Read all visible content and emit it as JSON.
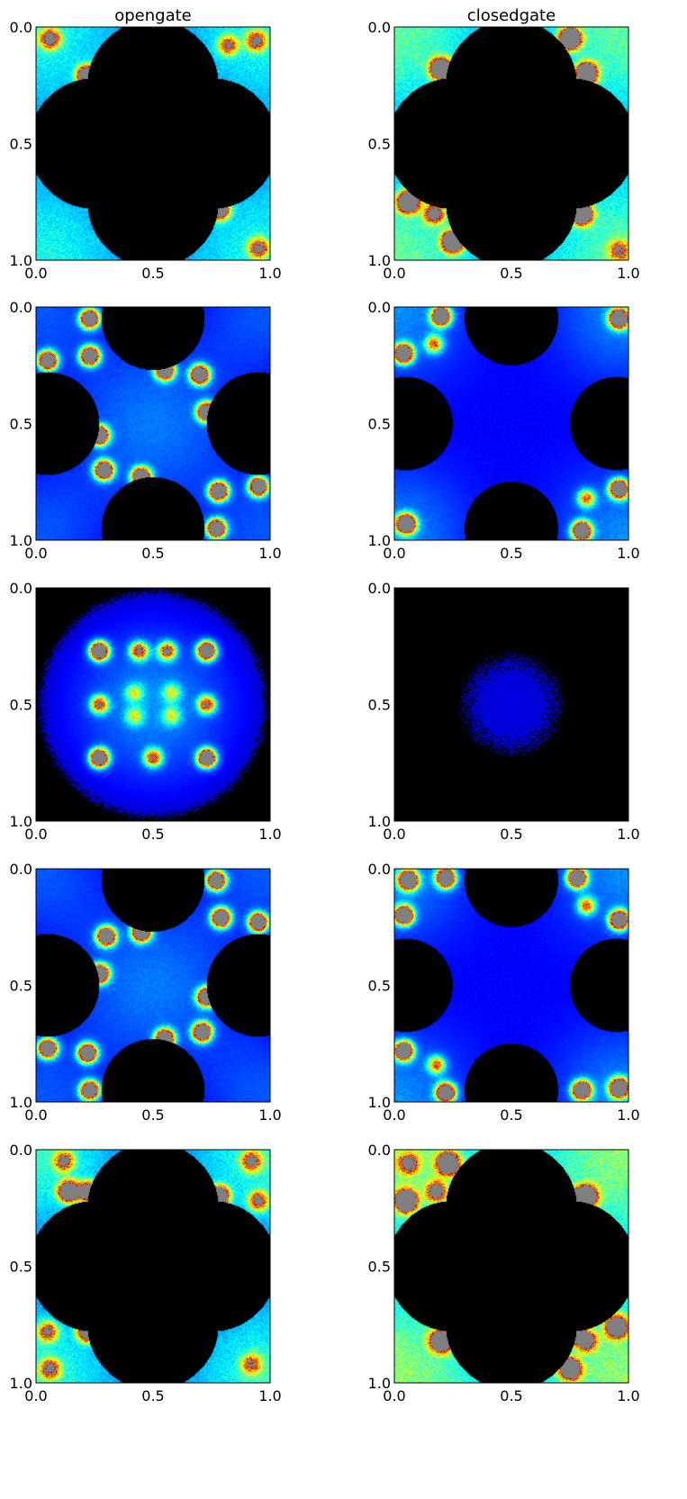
{
  "colors": {
    "background": "#000000",
    "saturated": "#808080",
    "colormap": [
      "#000080",
      "#0000ff",
      "#0080ff",
      "#00ffff",
      "#80ff80",
      "#ffff00",
      "#ff8000",
      "#ff0000",
      "#800000"
    ]
  },
  "chart_data": [
    {
      "type": "heatmap",
      "panel": "row-1-left",
      "title": "opengate",
      "xlim": [
        0.0,
        1.0
      ],
      "ylim": [
        1.0,
        0.0
      ],
      "x_ticks": [
        "0.0",
        "0.5",
        "1.0"
      ],
      "y_ticks": [
        "0.0",
        "0.5",
        "1.0"
      ],
      "symmetry": "fourfold-corners",
      "background": "#000000",
      "hotspots": [
        [
          0.06,
          0.05,
          1.2
        ],
        [
          0.22,
          0.21,
          2.2
        ],
        [
          0.94,
          0.06,
          1.0
        ],
        [
          0.82,
          0.08,
          0.9
        ],
        [
          0.78,
          0.78,
          2.2
        ],
        [
          0.95,
          0.95,
          1.0
        ],
        [
          0.2,
          0.5,
          0.6
        ],
        [
          0.5,
          0.5,
          0.3
        ]
      ],
      "blobs": [
        [
          0.0,
          0.0,
          0.35,
          0.7
        ],
        [
          1.0,
          0.0,
          0.35,
          0.7
        ],
        [
          0.0,
          1.0,
          0.35,
          0.7
        ],
        [
          1.0,
          1.0,
          0.35,
          0.7
        ]
      ],
      "voids": [
        [
          0.5,
          0.25,
          0.28
        ],
        [
          0.5,
          0.75,
          0.28
        ],
        [
          0.25,
          0.5,
          0.28
        ],
        [
          0.75,
          0.5,
          0.28
        ],
        [
          0.5,
          0.5,
          0.25
        ]
      ]
    },
    {
      "type": "heatmap",
      "panel": "row-1-right",
      "title": "closedgate",
      "xlim": [
        0.0,
        1.0
      ],
      "ylim": [
        1.0,
        0.0
      ],
      "x_ticks": [
        "0.0",
        "0.5",
        "1.0"
      ],
      "y_ticks": [
        "0.0",
        "0.5",
        "1.0"
      ],
      "symmetry": "fourfold-corners",
      "background": "#000000",
      "hotspots": [
        [
          0.2,
          0.18,
          2.5
        ],
        [
          0.75,
          0.05,
          2.5
        ],
        [
          0.82,
          0.2,
          2.5
        ],
        [
          0.06,
          0.75,
          2.5
        ],
        [
          0.25,
          0.92,
          2.5
        ],
        [
          0.8,
          0.8,
          2.5
        ],
        [
          0.17,
          0.8,
          1.3
        ],
        [
          0.96,
          0.96,
          0.8
        ]
      ],
      "blobs": [
        [
          0.0,
          0.0,
          0.35,
          0.8
        ],
        [
          1.0,
          0.0,
          0.35,
          0.8
        ],
        [
          0.0,
          1.0,
          0.35,
          0.8
        ],
        [
          1.0,
          1.0,
          0.35,
          0.8
        ]
      ],
      "voids": [
        [
          0.5,
          0.25,
          0.28
        ],
        [
          0.5,
          0.75,
          0.28
        ],
        [
          0.25,
          0.5,
          0.28
        ],
        [
          0.75,
          0.5,
          0.28
        ],
        [
          0.5,
          0.5,
          0.28
        ]
      ]
    },
    {
      "type": "heatmap",
      "panel": "row-2-left",
      "title": "",
      "xlim": [
        0.0,
        1.0
      ],
      "ylim": [
        1.0,
        0.0
      ],
      "x_ticks": [
        "0.0",
        "0.5",
        "1.0"
      ],
      "y_ticks": [
        "0.0",
        "0.5",
        "1.0"
      ],
      "symmetry": "center-network",
      "background": "#000000",
      "hotspots": [
        [
          0.23,
          0.21,
          2.2
        ],
        [
          0.05,
          0.23,
          2.2
        ],
        [
          0.55,
          0.27,
          2.2
        ],
        [
          0.7,
          0.29,
          2.2
        ],
        [
          0.73,
          0.45,
          2.2
        ],
        [
          0.27,
          0.55,
          2.2
        ],
        [
          0.29,
          0.7,
          2.2
        ],
        [
          0.45,
          0.73,
          2.2
        ],
        [
          0.78,
          0.79,
          2.2
        ],
        [
          0.95,
          0.77,
          2.2
        ],
        [
          0.77,
          0.95,
          2.2
        ],
        [
          0.23,
          0.05,
          2.2
        ]
      ],
      "blobs": [
        [
          0.5,
          0.5,
          0.28,
          0.45
        ],
        [
          0.0,
          0.0,
          0.22,
          0.35
        ],
        [
          1.0,
          1.0,
          0.22,
          0.35
        ],
        [
          0.0,
          1.0,
          0.22,
          0.35
        ],
        [
          1.0,
          0.0,
          0.22,
          0.35
        ]
      ],
      "voids": [
        [
          0.5,
          0.05,
          0.22
        ],
        [
          0.5,
          0.95,
          0.22
        ],
        [
          0.05,
          0.5,
          0.22
        ],
        [
          0.95,
          0.5,
          0.22
        ]
      ]
    },
    {
      "type": "heatmap",
      "panel": "row-2-right",
      "title": "",
      "xlim": [
        0.0,
        1.0
      ],
      "ylim": [
        1.0,
        0.0
      ],
      "x_ticks": [
        "0.0",
        "0.5",
        "1.0"
      ],
      "y_ticks": [
        "0.0",
        "0.5",
        "1.0"
      ],
      "symmetry": "corners-with-diffuse-center",
      "background": "#000000",
      "hotspots": [
        [
          0.2,
          0.04,
          2.2
        ],
        [
          0.04,
          0.2,
          2.2
        ],
        [
          0.96,
          0.05,
          2.2
        ],
        [
          0.8,
          0.96,
          2.2
        ],
        [
          0.96,
          0.78,
          2.2
        ],
        [
          0.05,
          0.93,
          2.2
        ],
        [
          0.17,
          0.16,
          1.0
        ],
        [
          0.82,
          0.82,
          1.0
        ]
      ],
      "blobs": [
        [
          0.0,
          0.0,
          0.25,
          0.5
        ],
        [
          1.0,
          0.0,
          0.25,
          0.5
        ],
        [
          0.0,
          1.0,
          0.25,
          0.5
        ],
        [
          1.0,
          1.0,
          0.25,
          0.5
        ],
        [
          0.5,
          0.5,
          0.25,
          0.12
        ]
      ],
      "voids": [
        [
          0.5,
          0.05,
          0.2
        ],
        [
          0.5,
          0.95,
          0.2
        ],
        [
          0.05,
          0.5,
          0.2
        ],
        [
          0.95,
          0.5,
          0.2
        ]
      ]
    },
    {
      "type": "heatmap",
      "panel": "row-3-left",
      "title": "",
      "xlim": [
        0.0,
        1.0
      ],
      "ylim": [
        1.0,
        0.0
      ],
      "x_ticks": [
        "0.0",
        "0.5",
        "1.0"
      ],
      "y_ticks": [
        "0.0",
        "0.5",
        "1.0"
      ],
      "symmetry": "central-ring",
      "background": "#000000",
      "hotspots": [
        [
          0.27,
          0.27,
          2.2
        ],
        [
          0.73,
          0.27,
          2.2
        ],
        [
          0.27,
          0.73,
          2.2
        ],
        [
          0.73,
          0.73,
          2.2
        ],
        [
          0.44,
          0.27,
          1.3
        ],
        [
          0.56,
          0.27,
          1.3
        ],
        [
          0.27,
          0.5,
          1.2
        ],
        [
          0.73,
          0.5,
          1.2
        ],
        [
          0.5,
          0.73,
          1.2
        ],
        [
          0.42,
          0.45,
          0.6
        ],
        [
          0.58,
          0.45,
          0.6
        ],
        [
          0.42,
          0.55,
          0.6
        ],
        [
          0.58,
          0.55,
          0.6
        ]
      ],
      "blobs": [
        [
          0.5,
          0.5,
          0.26,
          0.5
        ]
      ],
      "voids": []
    },
    {
      "type": "heatmap",
      "panel": "row-3-right",
      "title": "",
      "xlim": [
        0.0,
        1.0
      ],
      "ylim": [
        1.0,
        0.0
      ],
      "x_ticks": [
        "0.0",
        "0.5",
        "1.0"
      ],
      "y_ticks": [
        "0.0",
        "0.5",
        "1.0"
      ],
      "symmetry": "diffuse-center",
      "background": "#000000",
      "hotspots": [],
      "blobs": [
        [
          0.5,
          0.5,
          0.25,
          0.12
        ]
      ],
      "voids": []
    },
    {
      "type": "heatmap",
      "panel": "row-4-left",
      "title": "",
      "xlim": [
        0.0,
        1.0
      ],
      "ylim": [
        1.0,
        0.0
      ],
      "x_ticks": [
        "0.0",
        "0.5",
        "1.0"
      ],
      "y_ticks": [
        "0.0",
        "0.5",
        "1.0"
      ],
      "symmetry": "center-network",
      "background": "#000000",
      "hotspots": [
        [
          0.77,
          0.05,
          2.2
        ],
        [
          0.95,
          0.23,
          2.2
        ],
        [
          0.45,
          0.27,
          2.2
        ],
        [
          0.3,
          0.29,
          2.2
        ],
        [
          0.27,
          0.45,
          2.2
        ],
        [
          0.73,
          0.55,
          2.2
        ],
        [
          0.71,
          0.7,
          2.2
        ],
        [
          0.55,
          0.73,
          2.2
        ],
        [
          0.22,
          0.79,
          2.2
        ],
        [
          0.05,
          0.77,
          2.2
        ],
        [
          0.23,
          0.95,
          2.2
        ],
        [
          0.79,
          0.21,
          2.2
        ]
      ],
      "blobs": [
        [
          0.5,
          0.5,
          0.28,
          0.45
        ],
        [
          0.0,
          0.0,
          0.22,
          0.35
        ],
        [
          1.0,
          1.0,
          0.22,
          0.35
        ],
        [
          0.0,
          1.0,
          0.22,
          0.35
        ],
        [
          1.0,
          0.0,
          0.22,
          0.35
        ]
      ],
      "voids": [
        [
          0.5,
          0.05,
          0.22
        ],
        [
          0.5,
          0.95,
          0.22
        ],
        [
          0.05,
          0.5,
          0.22
        ],
        [
          0.95,
          0.5,
          0.22
        ]
      ]
    },
    {
      "type": "heatmap",
      "panel": "row-4-right",
      "title": "",
      "xlim": [
        0.0,
        1.0
      ],
      "ylim": [
        1.0,
        0.0
      ],
      "x_ticks": [
        "0.0",
        "0.5",
        "1.0"
      ],
      "y_ticks": [
        "0.0",
        "0.5",
        "1.0"
      ],
      "symmetry": "corners-with-diffuse-center",
      "background": "#000000",
      "hotspots": [
        [
          0.06,
          0.05,
          2.2
        ],
        [
          0.22,
          0.04,
          2.2
        ],
        [
          0.78,
          0.04,
          2.2
        ],
        [
          0.96,
          0.22,
          2.2
        ],
        [
          0.04,
          0.2,
          2.2
        ],
        [
          0.96,
          0.94,
          2.2
        ],
        [
          0.8,
          0.95,
          2.2
        ],
        [
          0.22,
          0.96,
          2.2
        ],
        [
          0.04,
          0.78,
          2.2
        ],
        [
          0.82,
          0.16,
          1.0
        ],
        [
          0.18,
          0.84,
          1.0
        ]
      ],
      "blobs": [
        [
          0.0,
          0.0,
          0.25,
          0.5
        ],
        [
          1.0,
          0.0,
          0.25,
          0.5
        ],
        [
          0.0,
          1.0,
          0.25,
          0.5
        ],
        [
          1.0,
          1.0,
          0.25,
          0.5
        ],
        [
          0.5,
          0.5,
          0.25,
          0.12
        ]
      ],
      "voids": [
        [
          0.5,
          0.05,
          0.2
        ],
        [
          0.5,
          0.95,
          0.2
        ],
        [
          0.05,
          0.5,
          0.2
        ],
        [
          0.95,
          0.5,
          0.2
        ]
      ]
    },
    {
      "type": "heatmap",
      "panel": "row-5-left",
      "title": "",
      "xlim": [
        0.0,
        1.0
      ],
      "ylim": [
        1.0,
        0.0
      ],
      "x_ticks": [
        "0.0",
        "0.5",
        "1.0"
      ],
      "y_ticks": [
        "0.0",
        "0.5",
        "1.0"
      ],
      "symmetry": "fourfold-corners",
      "background": "#000000",
      "hotspots": [
        [
          0.14,
          0.18,
          2.0
        ],
        [
          0.22,
          0.18,
          1.6
        ],
        [
          0.12,
          0.05,
          1.0
        ],
        [
          0.78,
          0.2,
          2.2
        ],
        [
          0.92,
          0.05,
          1.0
        ],
        [
          0.95,
          0.22,
          1.0
        ],
        [
          0.05,
          0.78,
          1.0
        ],
        [
          0.22,
          0.78,
          1.8
        ],
        [
          0.92,
          0.92,
          0.8
        ],
        [
          0.06,
          0.94,
          1.0
        ],
        [
          0.48,
          0.4,
          0.4
        ]
      ],
      "blobs": [
        [
          0.0,
          0.0,
          0.33,
          0.75
        ],
        [
          1.0,
          0.0,
          0.33,
          0.75
        ],
        [
          0.0,
          1.0,
          0.33,
          0.75
        ],
        [
          1.0,
          1.0,
          0.33,
          0.75
        ]
      ],
      "voids": [
        [
          0.5,
          0.25,
          0.28
        ],
        [
          0.5,
          0.75,
          0.28
        ],
        [
          0.25,
          0.5,
          0.28
        ],
        [
          0.75,
          0.5,
          0.28
        ],
        [
          0.5,
          0.5,
          0.28
        ]
      ]
    },
    {
      "type": "heatmap",
      "panel": "row-5-right",
      "title": "",
      "xlim": [
        0.0,
        1.0
      ],
      "ylim": [
        1.0,
        0.0
      ],
      "x_ticks": [
        "0.0",
        "0.5",
        "1.0"
      ],
      "y_ticks": [
        "0.0",
        "0.5",
        "1.0"
      ],
      "symmetry": "fourfold-corners",
      "background": "#000000",
      "hotspots": [
        [
          0.05,
          0.22,
          2.5
        ],
        [
          0.23,
          0.06,
          2.5
        ],
        [
          0.82,
          0.2,
          2.5
        ],
        [
          0.76,
          0.22,
          2.0
        ],
        [
          0.2,
          0.82,
          2.5
        ],
        [
          0.76,
          0.78,
          2.5
        ],
        [
          0.95,
          0.76,
          2.2
        ],
        [
          0.75,
          0.94,
          2.2
        ],
        [
          0.18,
          0.18,
          1.2
        ],
        [
          0.82,
          0.82,
          1.3
        ],
        [
          0.06,
          0.06,
          1.0
        ]
      ],
      "blobs": [
        [
          0.0,
          0.0,
          0.36,
          0.85
        ],
        [
          1.0,
          0.0,
          0.36,
          0.85
        ],
        [
          0.0,
          1.0,
          0.36,
          0.85
        ],
        [
          1.0,
          1.0,
          0.36,
          0.85
        ]
      ],
      "voids": [
        [
          0.5,
          0.25,
          0.28
        ],
        [
          0.5,
          0.75,
          0.28
        ],
        [
          0.25,
          0.5,
          0.28
        ],
        [
          0.75,
          0.5,
          0.28
        ],
        [
          0.5,
          0.5,
          0.28
        ]
      ]
    }
  ]
}
